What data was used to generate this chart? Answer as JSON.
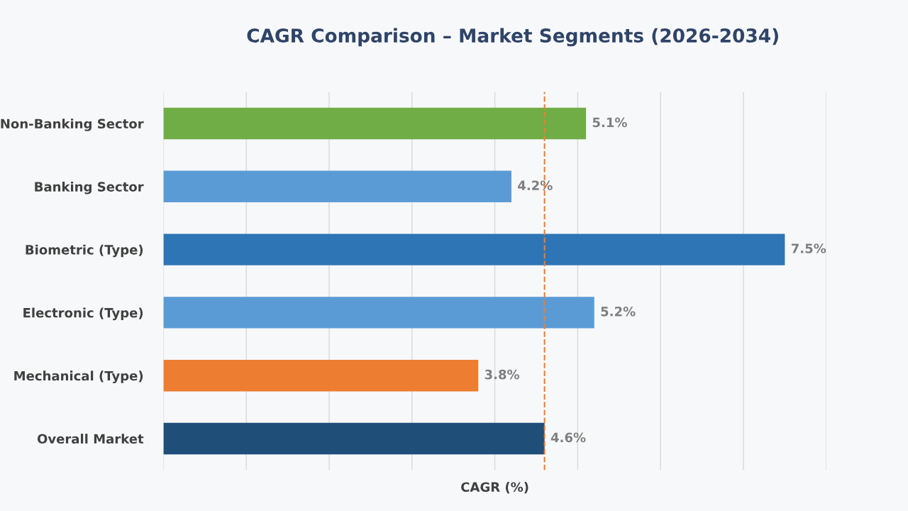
{
  "chart_data": {
    "type": "bar",
    "orientation": "horizontal",
    "title": "CAGR Comparison – Market Segments (2026-2034)",
    "xlabel": "CAGR (%)",
    "categories": [
      "Non-Banking Sector",
      "Banking Sector",
      "Biometric (Type)",
      "Electronic (Type)",
      "Mechanical (Type)",
      "Overall Market"
    ],
    "values": [
      5.1,
      4.2,
      7.5,
      5.2,
      3.8,
      4.6
    ],
    "colors": [
      "#70ad47",
      "#5b9bd5",
      "#2e75b6",
      "#5b9bd5",
      "#ed7d31",
      "#1f4e79"
    ],
    "value_labels": [
      "5.1%",
      "4.2%",
      "7.5%",
      "5.2%",
      "3.8%",
      "4.6%"
    ],
    "xlim": [
      0,
      8
    ],
    "xticks": [
      {
        "value": 0,
        "label": null
      },
      {
        "value": 1,
        "label": null
      },
      {
        "value": 2,
        "label": null
      },
      {
        "value": 3,
        "label": null
      },
      {
        "value": 4,
        "label": null
      },
      {
        "value": 5,
        "label": null
      },
      {
        "value": 6,
        "label": null
      },
      {
        "value": 7,
        "label": null
      },
      {
        "value": 8,
        "label": null
      }
    ],
    "grid": "x",
    "tick_labels": "y",
    "ref_lines": [
      {
        "axis": "x",
        "value": 4.6,
        "color": "#ed7d31",
        "line_style": "dashed"
      }
    ]
  }
}
